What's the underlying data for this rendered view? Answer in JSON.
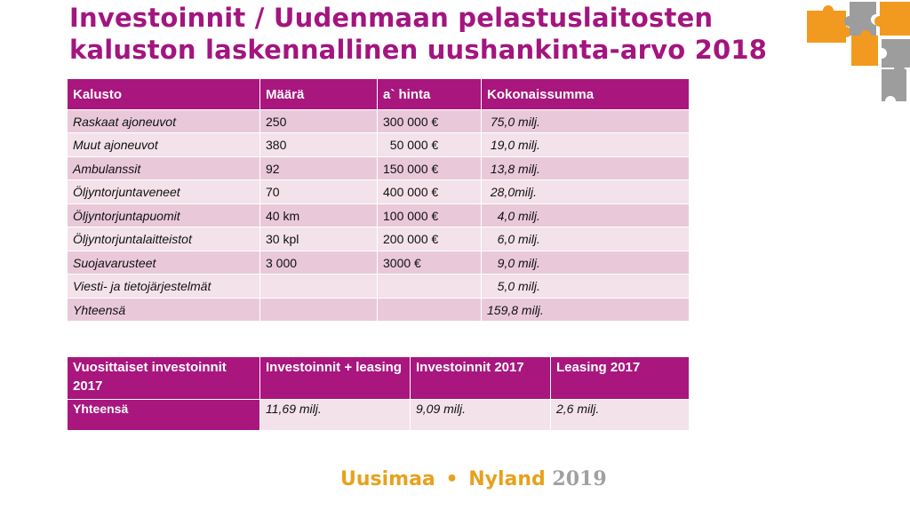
{
  "title": {
    "line1": "Investoinnit / Uudenmaan pelastuslaitosten",
    "line2": "kaluston laskennallinen uushankinta-arvo 2018"
  },
  "table1": {
    "headers": [
      "Kalusto",
      "Määrä",
      "a` hinta",
      "Kokonaissumma"
    ],
    "rows": [
      [
        "Raskaat ajoneuvot",
        "250",
        "300 000 €",
        " 75,0 milj."
      ],
      [
        "Muut ajoneuvot",
        "380",
        "  50 000 €",
        " 19,0 milj."
      ],
      [
        "Ambulanssit",
        "92",
        "150 000 €",
        " 13,8 milj."
      ],
      [
        "Öljyntorjuntaveneet",
        "70",
        "400 000 €",
        " 28,0milj."
      ],
      [
        "Öljyntorjuntapuomit",
        "40 km",
        "100 000 €",
        "   4,0 milj."
      ],
      [
        "Öljyntorjuntalaitteistot",
        "30 kpl",
        "200 000 €",
        "   6,0 milj."
      ],
      [
        "Suojavarusteet",
        "3 000",
        "3000 €",
        "   9,0 milj."
      ],
      [
        "Viesti- ja tietojärjestelmät",
        "",
        "",
        "   5,0 milj."
      ],
      [
        "Yhteensä",
        "",
        "",
        "159,8 milj."
      ]
    ]
  },
  "table2": {
    "headers": [
      "Vuosittaiset investoinnit 2017",
      "Investoinnit + leasing",
      "Investoinnit 2017",
      "Leasing 2017"
    ],
    "rows": [
      [
        "Yhteensä",
        "11,69 milj.",
        "9,09 milj.",
        "2,6 milj."
      ]
    ]
  },
  "footer": {
    "part1": "Uusimaa",
    "separator": "•",
    "part2": "Nyland",
    "year": "2019"
  },
  "colors": {
    "accent": "#a8167e",
    "row_dark": "#e9c9d9",
    "row_light": "#f3e2ea",
    "puzzle_orange": "#f29a1f",
    "puzzle_gray": "#9d9d9d"
  },
  "icons": [
    "puzzle-pieces-icon"
  ]
}
